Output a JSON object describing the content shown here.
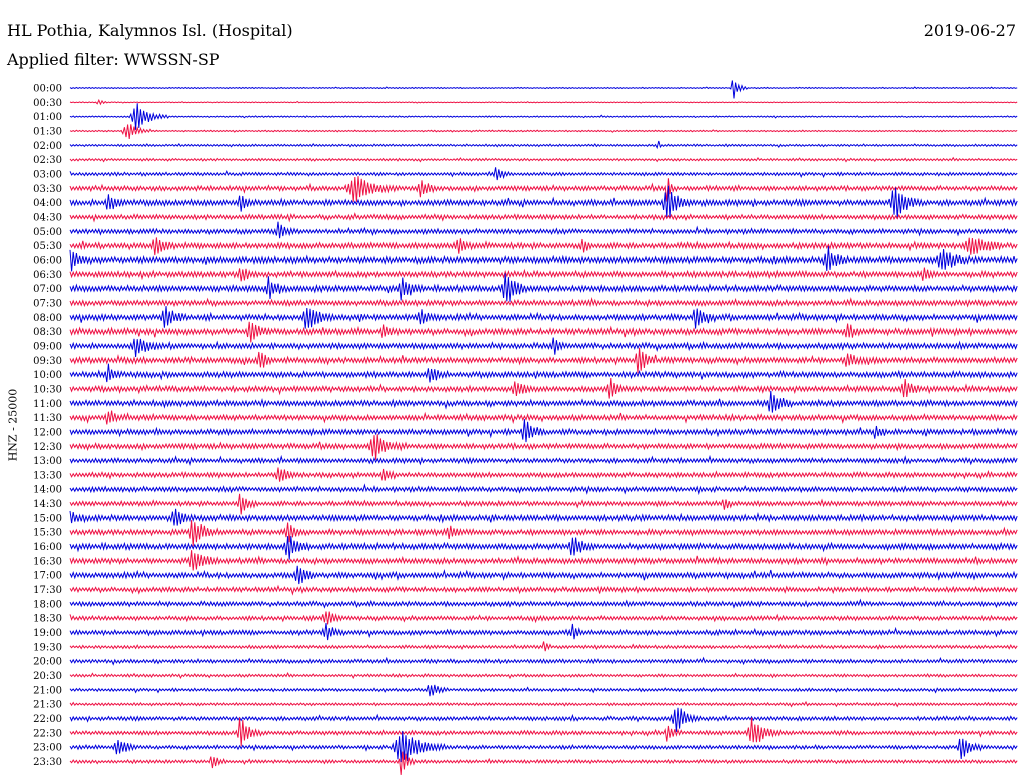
{
  "header": {
    "title": "HL Pothia, Kalymnos Isl. (Hospital)",
    "filter": "Applied filter: WWSSN-SP",
    "date": "2019-06-27"
  },
  "chart_data": {
    "type": "line",
    "title": "HL Pothia, Kalymnos Isl. (Hospital)",
    "subtitle": "Applied filter: WWSSN-SP",
    "date": "2019-06-27",
    "ylabel": "HNZ - 25000",
    "row_labels": [
      "00:00",
      "00:30",
      "01:00",
      "01:30",
      "02:00",
      "02:30",
      "03:00",
      "03:30",
      "04:00",
      "04:30",
      "05:00",
      "05:30",
      "06:00",
      "06:30",
      "07:00",
      "07:30",
      "08:00",
      "08:30",
      "09:00",
      "09:30",
      "10:00",
      "10:30",
      "11:00",
      "11:30",
      "12:00",
      "12:30",
      "13:00",
      "13:30",
      "14:00",
      "14:30",
      "15:00",
      "15:30",
      "16:00",
      "16:30",
      "17:00",
      "17:30",
      "18:00",
      "18:30",
      "19:00",
      "19:30",
      "20:00",
      "20:30",
      "21:00",
      "21:30",
      "22:00",
      "22:30",
      "23:00",
      "23:30"
    ],
    "trace_colors": [
      "#0000dd",
      "#ee1144"
    ],
    "minutes_per_row": 30,
    "noise_level": [
      0.6,
      0.5,
      0.8,
      0.8,
      1.2,
      1.3,
      1.8,
      2.6,
      3.2,
      2.6,
      2.6,
      3.2,
      3.6,
      3.2,
      3.4,
      3.0,
      3.2,
      3.3,
      3.1,
      3.2,
      3.2,
      3.0,
      3.1,
      3.0,
      3.0,
      2.9,
      2.6,
      2.7,
      2.7,
      2.6,
      3.2,
      3.0,
      3.3,
      3.0,
      3.0,
      2.6,
      2.5,
      2.4,
      2.6,
      1.8,
      2.1,
      1.6,
      1.6,
      1.5,
      2.2,
      2.2,
      2.1,
      1.8
    ],
    "bursts": [
      [
        [
          0.7,
          12,
          4
        ]
      ],
      [
        [
          0.03,
          3,
          3
        ]
      ],
      [
        [
          0.07,
          14,
          9
        ]
      ],
      [
        [
          0.06,
          10,
          7
        ]
      ],
      [
        [
          0.62,
          10,
          1
        ]
      ],
      [],
      [
        [
          0.45,
          9,
          4
        ]
      ],
      [
        [
          0.3,
          13,
          12
        ],
        [
          0.37,
          9,
          5
        ],
        [
          0.63,
          16,
          2
        ]
      ],
      [
        [
          0.04,
          10,
          5
        ],
        [
          0.18,
          9,
          4
        ],
        [
          0.63,
          20,
          7
        ],
        [
          0.87,
          18,
          8
        ]
      ],
      [],
      [
        [
          0.22,
          8,
          5
        ]
      ],
      [
        [
          0.09,
          9,
          6
        ],
        [
          0.41,
          9,
          4
        ],
        [
          0.54,
          9,
          3
        ],
        [
          0.95,
          10,
          10
        ]
      ],
      [
        [
          0.0,
          11,
          6
        ],
        [
          0.8,
          12,
          6
        ],
        [
          0.92,
          12,
          8
        ]
      ],
      [
        [
          0.18,
          8,
          4
        ],
        [
          0.9,
          9,
          3
        ]
      ],
      [
        [
          0.21,
          11,
          5
        ],
        [
          0.35,
          10,
          6
        ],
        [
          0.46,
          20,
          6
        ]
      ],
      [],
      [
        [
          0.1,
          10,
          6
        ],
        [
          0.25,
          12,
          8
        ],
        [
          0.37,
          8,
          5
        ],
        [
          0.66,
          12,
          5
        ]
      ],
      [
        [
          0.19,
          11,
          6
        ],
        [
          0.33,
          8,
          4
        ],
        [
          0.82,
          8,
          4
        ]
      ],
      [
        [
          0.07,
          9,
          8
        ],
        [
          0.51,
          9,
          3
        ]
      ],
      [
        [
          0.2,
          10,
          5
        ],
        [
          0.6,
          12,
          5
        ],
        [
          0.82,
          8,
          5
        ]
      ],
      [
        [
          0.04,
          9,
          4
        ],
        [
          0.38,
          8,
          5
        ]
      ],
      [
        [
          0.47,
          9,
          6
        ],
        [
          0.57,
          10,
          5
        ],
        [
          0.88,
          11,
          5
        ]
      ],
      [
        [
          0.74,
          12,
          6
        ]
      ],
      [
        [
          0.04,
          8,
          5
        ]
      ],
      [
        [
          0.48,
          12,
          6
        ],
        [
          0.85,
          8,
          3
        ]
      ],
      [
        [
          0.32,
          14,
          8
        ]
      ],
      [],
      [
        [
          0.22,
          10,
          6
        ],
        [
          0.33,
          8,
          4
        ]
      ],
      [],
      [
        [
          0.18,
          11,
          5
        ],
        [
          0.69,
          8,
          3
        ]
      ],
      [
        [
          0.0,
          8,
          5
        ],
        [
          0.11,
          9,
          6
        ]
      ],
      [
        [
          0.13,
          14,
          7
        ],
        [
          0.23,
          9,
          5
        ],
        [
          0.4,
          8,
          4
        ]
      ],
      [
        [
          0.23,
          12,
          6
        ],
        [
          0.53,
          11,
          6
        ]
      ],
      [
        [
          0.13,
          11,
          8
        ]
      ],
      [
        [
          0.24,
          11,
          5
        ]
      ],
      [],
      [],
      [
        [
          0.27,
          9,
          4
        ]
      ],
      [
        [
          0.27,
          8,
          5
        ],
        [
          0.53,
          8,
          3
        ]
      ],
      [
        [
          0.5,
          8,
          2
        ]
      ],
      [],
      [],
      [
        [
          0.38,
          8,
          5
        ]
      ],
      [],
      [
        [
          0.64,
          14,
          7
        ]
      ],
      [
        [
          0.18,
          16,
          6
        ],
        [
          0.72,
          15,
          8
        ],
        [
          0.63,
          8,
          4
        ]
      ],
      [
        [
          0.05,
          10,
          6
        ],
        [
          0.35,
          18,
          13
        ],
        [
          0.94,
          12,
          6
        ]
      ],
      [
        [
          0.35,
          16,
          4
        ],
        [
          0.15,
          8,
          4
        ]
      ]
    ]
  }
}
